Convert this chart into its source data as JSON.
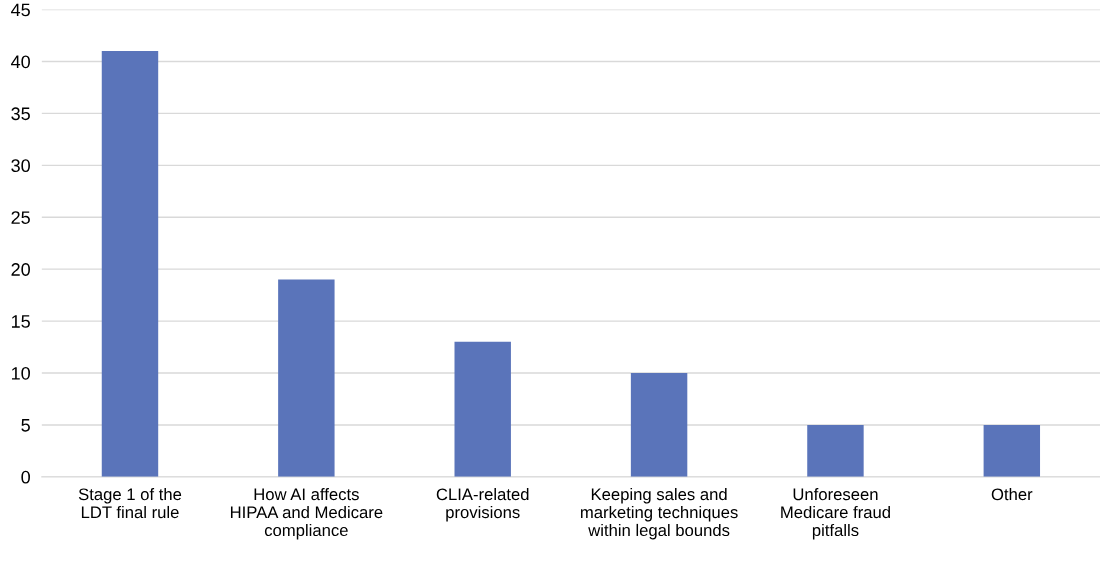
{
  "chart_data": {
    "type": "bar",
    "categories": [
      "Stage 1 of the\nLDT final rule",
      "How AI affects\nHIPAA and Medicare\ncompliance",
      "CLIA-related\nprovisions",
      "Keeping sales and\nmarketing techniques\nwithin legal bounds",
      "Unforeseen\nMedicare fraud\npitfalls",
      "Other"
    ],
    "values": [
      41,
      19,
      13,
      10,
      5,
      5
    ],
    "color": "#5a74ba",
    "ylim": [
      0,
      45
    ],
    "yticks": [
      0,
      5,
      10,
      15,
      20,
      25,
      30,
      35,
      40,
      45
    ],
    "grid": "y",
    "legend": false
  }
}
